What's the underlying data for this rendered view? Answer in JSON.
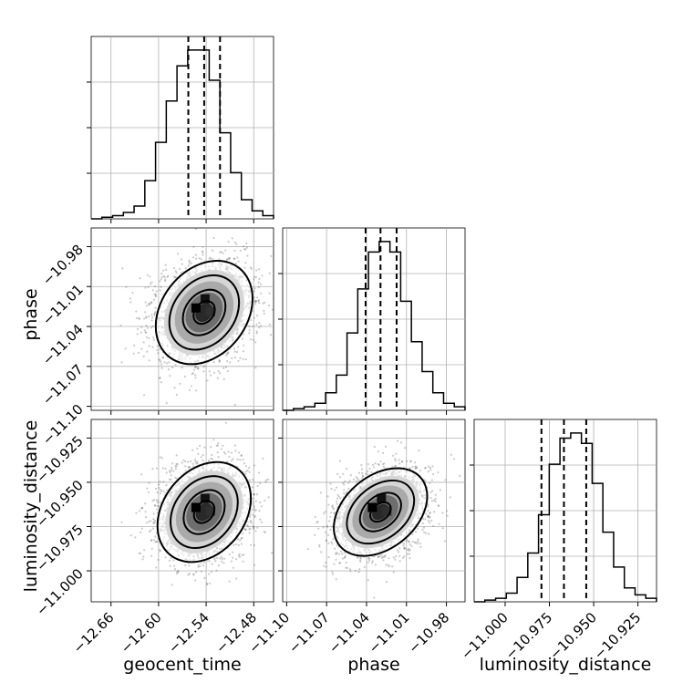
{
  "chart_data": {
    "type": "corner",
    "parameters": [
      "geocent_time",
      "phase",
      "luminosity_distance"
    ],
    "axis_labels": {
      "geocent_time": "geocent_time",
      "phase": "phase",
      "luminosity_distance": "luminosity_distance"
    },
    "ranges": {
      "geocent_time": [
        -12.685,
        -12.455
      ],
      "phase": [
        -11.103,
        -10.966
      ],
      "luminosity_distance": [
        -11.0175,
        -10.9145
      ]
    },
    "ticks": {
      "geocent_time": {
        "values": [
          -12.66,
          -12.6,
          -12.54,
          -12.48
        ],
        "labels": [
          "−12.66",
          "−12.60",
          "−12.54",
          "−12.48"
        ]
      },
      "phase": {
        "values": [
          -11.1,
          -11.07,
          -11.04,
          -11.01,
          -10.98
        ],
        "labels": [
          "−11.10",
          "−11.07",
          "−11.04",
          "−11.01",
          "−10.98"
        ]
      },
      "luminosity_distance": {
        "values": [
          -11.0,
          -10.975,
          -10.95,
          -10.925
        ],
        "labels": [
          "−11.000",
          "−10.975",
          "−10.950",
          "−10.925"
        ]
      }
    },
    "quantiles": {
      "geocent_time": [
        -12.5625,
        -12.5425,
        -12.5225
      ],
      "phase": [
        -11.0407,
        -11.0295,
        -11.0174
      ],
      "luminosity_distance": [
        -10.9795,
        -10.9668,
        -10.9542
      ]
    },
    "histograms": {
      "geocent_time": [
        0,
        1,
        2,
        4,
        8,
        24,
        48,
        74,
        96,
        106,
        106,
        87,
        54,
        29,
        12,
        5,
        2
      ],
      "phase": [
        0,
        1,
        2,
        4,
        10,
        20,
        44,
        69,
        90,
        96,
        90,
        62,
        39,
        22,
        10,
        4,
        2
      ],
      "luminosity_distance": [
        0,
        1,
        2,
        5,
        14,
        28,
        50,
        79,
        94,
        97,
        91,
        68,
        40,
        20,
        8,
        4,
        2
      ]
    },
    "grid": true
  }
}
